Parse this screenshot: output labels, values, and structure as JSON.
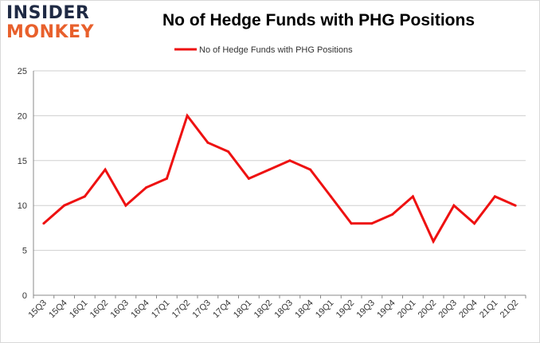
{
  "logo": {
    "line1": "INSIDER",
    "line2": "MONKEY"
  },
  "colors": {
    "series": "#ee1111",
    "grid": "#cfcfcf",
    "axis": "#888888"
  },
  "chart_data": {
    "type": "line",
    "title": "No of Hedge Funds with PHG Positions",
    "xlabel": "",
    "ylabel": "",
    "categories": [
      "15Q3",
      "15Q4",
      "16Q1",
      "16Q2",
      "16Q3",
      "16Q4",
      "17Q1",
      "17Q2",
      "17Q3",
      "17Q4",
      "18Q1",
      "18Q2",
      "18Q3",
      "18Q4",
      "19Q1",
      "19Q2",
      "19Q3",
      "19Q4",
      "20Q1",
      "20Q2",
      "20Q3",
      "20Q4",
      "21Q1",
      "21Q2"
    ],
    "series": [
      {
        "name": "No of Hedge Funds with PHG Positions",
        "values": [
          8,
          10,
          11,
          14,
          10,
          12,
          13,
          20,
          17,
          16,
          13,
          14,
          15,
          14,
          11,
          8,
          8,
          9,
          11,
          6,
          10,
          8,
          11,
          10
        ]
      }
    ],
    "ylim": [
      0,
      25
    ],
    "yticks": [
      0,
      5,
      10,
      15,
      20,
      25
    ],
    "grid": true,
    "legend": "top-center"
  }
}
